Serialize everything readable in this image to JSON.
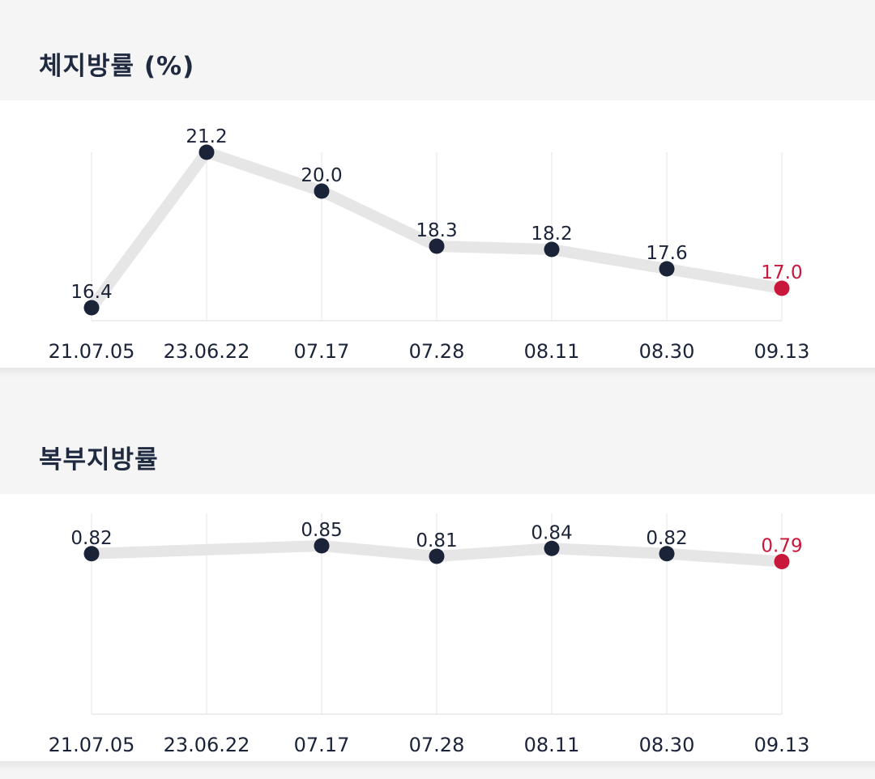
{
  "charts": [
    {
      "title": "체지방률 (%)",
      "chart_data": {
        "type": "line",
        "categories": [
          "21.07.05",
          "23.06.22",
          "07.17",
          "07.28",
          "08.11",
          "08.30",
          "09.13"
        ],
        "values": [
          16.4,
          21.2,
          20.0,
          18.3,
          18.2,
          17.6,
          17.0
        ],
        "value_labels": [
          "16.4",
          "21.2",
          "20.0",
          "18.3",
          "18.2",
          "17.6",
          "17.0"
        ],
        "title": "체지방률 (%)",
        "xlabel": "",
        "ylabel": "",
        "ylim": [
          15.8,
          21.8
        ],
        "grid": "vertical",
        "highlight_last": true,
        "colors": {
          "line": "#e6e6e6",
          "point": "#1b2338",
          "last_point": "#c8173a",
          "grid": "#eeeeee"
        }
      }
    },
    {
      "title": "복부지방률",
      "chart_data": {
        "type": "line",
        "categories": [
          "21.07.05",
          "23.06.22",
          "07.17",
          "07.28",
          "08.11",
          "08.30",
          "09.13"
        ],
        "values": [
          0.82,
          null,
          0.85,
          0.81,
          0.84,
          0.82,
          0.79
        ],
        "value_labels": [
          "0.82",
          "",
          "0.85",
          "0.81",
          "0.84",
          "0.82",
          "0.79"
        ],
        "title": "복부지방률",
        "xlabel": "",
        "ylabel": "",
        "ylim": [
          0.0,
          0.9
        ],
        "grid": "vertical",
        "highlight_last": true,
        "colors": {
          "line": "#e6e6e6",
          "point": "#1b2338",
          "last_point": "#c8173a",
          "grid": "#eeeeee"
        }
      }
    }
  ]
}
